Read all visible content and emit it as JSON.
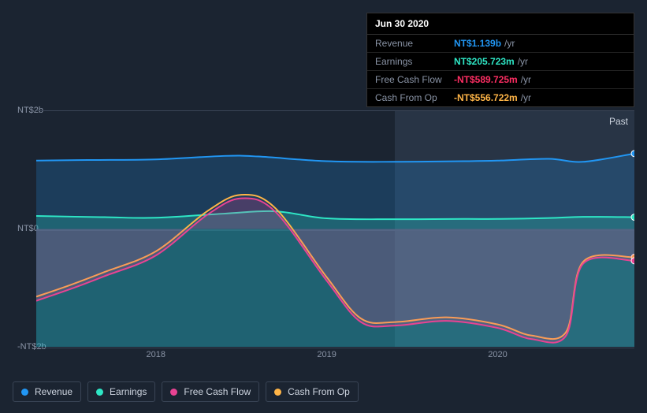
{
  "tooltip": {
    "date": "Jun 30 2020",
    "unit": "/yr",
    "rows": [
      {
        "label": "Revenue",
        "value": "NT$1.139b",
        "color": "#2196f3"
      },
      {
        "label": "Earnings",
        "value": "NT$205.723m",
        "color": "#2ee6c5"
      },
      {
        "label": "Free Cash Flow",
        "value": "-NT$589.725m",
        "color": "#ff2e63"
      },
      {
        "label": "Cash From Op",
        "value": "-NT$556.722m",
        "color": "#ffb547"
      }
    ]
  },
  "chart": {
    "type": "area-line",
    "background_color": "#1b2431",
    "grid_color": "#374255",
    "highlight_band_color": "rgba(80,100,130,0.25)",
    "past_label": "Past",
    "y": {
      "min": -2000,
      "max": 2000,
      "ticks": [
        {
          "v": 2000,
          "label": "NT$2b"
        },
        {
          "v": 0,
          "label": "NT$0"
        },
        {
          "v": -2000,
          "label": "-NT$2b"
        }
      ]
    },
    "x": {
      "min": 2017.3,
      "max": 2020.8,
      "ticks": [
        {
          "v": 2018,
          "label": "2018"
        },
        {
          "v": 2019,
          "label": "2019"
        },
        {
          "v": 2020,
          "label": "2020"
        }
      ],
      "highlight_from": 2019.4,
      "highlight_to": 2020.8
    },
    "line_width": 2,
    "fill_opacity": 0.22,
    "series": [
      {
        "key": "revenue",
        "label": "Revenue",
        "color": "#2196f3",
        "fill_to": -2000,
        "points": [
          [
            2017.3,
            1160
          ],
          [
            2017.6,
            1170
          ],
          [
            2018.0,
            1180
          ],
          [
            2018.4,
            1240
          ],
          [
            2018.6,
            1230
          ],
          [
            2019.0,
            1150
          ],
          [
            2019.4,
            1140
          ],
          [
            2019.8,
            1150
          ],
          [
            2020.0,
            1160
          ],
          [
            2020.3,
            1190
          ],
          [
            2020.5,
            1140
          ],
          [
            2020.8,
            1280
          ]
        ]
      },
      {
        "key": "earnings",
        "label": "Earnings",
        "color": "#2ee6c5",
        "fill_to": -2000,
        "points": [
          [
            2017.3,
            220
          ],
          [
            2017.7,
            200
          ],
          [
            2018.0,
            190
          ],
          [
            2018.4,
            260
          ],
          [
            2018.7,
            300
          ],
          [
            2019.0,
            180
          ],
          [
            2019.4,
            165
          ],
          [
            2019.8,
            170
          ],
          [
            2020.0,
            170
          ],
          [
            2020.3,
            185
          ],
          [
            2020.5,
            206
          ],
          [
            2020.8,
            200
          ]
        ]
      },
      {
        "key": "cash_from_op",
        "label": "Cash From Op",
        "color": "#ffb547",
        "fill_to": null,
        "points": [
          [
            2017.3,
            -1150
          ],
          [
            2017.5,
            -950
          ],
          [
            2017.7,
            -730
          ],
          [
            2018.0,
            -380
          ],
          [
            2018.3,
            300
          ],
          [
            2018.5,
            580
          ],
          [
            2018.7,
            350
          ],
          [
            2019.0,
            -820
          ],
          [
            2019.2,
            -1520
          ],
          [
            2019.4,
            -1580
          ],
          [
            2019.7,
            -1500
          ],
          [
            2020.0,
            -1620
          ],
          [
            2020.2,
            -1810
          ],
          [
            2020.4,
            -1750
          ],
          [
            2020.5,
            -557
          ],
          [
            2020.8,
            -480
          ]
        ]
      },
      {
        "key": "free_cash_flow",
        "label": "Free Cash Flow",
        "color": "#e84393",
        "fill_to": 0,
        "points": [
          [
            2017.3,
            -1220
          ],
          [
            2017.5,
            -1020
          ],
          [
            2017.7,
            -800
          ],
          [
            2018.0,
            -450
          ],
          [
            2018.3,
            240
          ],
          [
            2018.5,
            520
          ],
          [
            2018.7,
            290
          ],
          [
            2019.0,
            -880
          ],
          [
            2019.2,
            -1580
          ],
          [
            2019.4,
            -1640
          ],
          [
            2019.7,
            -1560
          ],
          [
            2020.0,
            -1680
          ],
          [
            2020.2,
            -1870
          ],
          [
            2020.4,
            -1810
          ],
          [
            2020.5,
            -590
          ],
          [
            2020.8,
            -540
          ]
        ]
      }
    ],
    "legend": [
      {
        "key": "revenue",
        "label": "Revenue",
        "color": "#2196f3"
      },
      {
        "key": "earnings",
        "label": "Earnings",
        "color": "#2ee6c5"
      },
      {
        "key": "free_cash_flow",
        "label": "Free Cash Flow",
        "color": "#e84393"
      },
      {
        "key": "cash_from_op",
        "label": "Cash From Op",
        "color": "#ffb547"
      }
    ]
  }
}
